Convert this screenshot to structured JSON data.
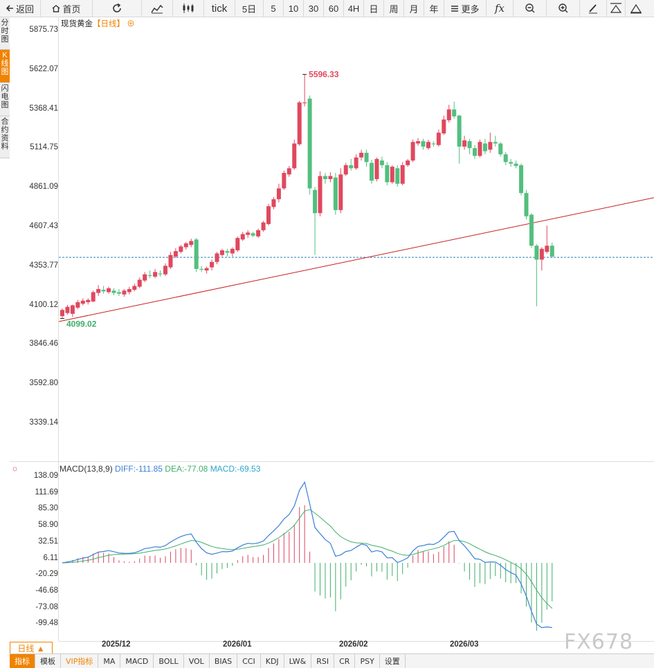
{
  "toolbar": {
    "back": "返回",
    "home": "首页",
    "tick": "tick",
    "periods": [
      "5日",
      "5",
      "10",
      "30",
      "60",
      "4H",
      "日",
      "周",
      "月",
      "年"
    ],
    "more": "更多",
    "fx": "fx"
  },
  "sidebar": [
    "分时图",
    "K线图",
    "闪电图",
    "合约资料"
  ],
  "chart": {
    "name": "现货黄金",
    "period": "【日线】",
    "y_ticks": [
      "5875.73",
      "5622.07",
      "5368.41",
      "5114.75",
      "4861.09",
      "4607.43",
      "4353.77",
      "4100.12",
      "3846.46",
      "3592.80",
      "3339.14"
    ],
    "high_label": "5596.33",
    "low_label": "4099.02",
    "x_ticks": [
      "2025/12",
      "2026/01",
      "2026/02",
      "2026/03"
    ]
  },
  "macd": {
    "title": "MACD(13,8,9)",
    "diff": "DIFF:-111.85",
    "dea": "DEA:-77.08",
    "macd": "MACD:-69.53",
    "y_ticks": [
      "138.09",
      "111.69",
      "85.30",
      "58.90",
      "32.51",
      "6.11",
      "-20.29",
      "-46.68",
      "-73.08",
      "-99.48"
    ],
    "colors": {
      "diff": "#3a7fd5",
      "dea": "#3fae6a",
      "up": "#d9455f",
      "down": "#3fae6a"
    }
  },
  "period_button": "日线 ▲",
  "bottom_tabs": [
    "指标",
    "模板",
    "VIP指标",
    "MA",
    "MACD",
    "BOLL",
    "VOL",
    "BIAS",
    "CCI",
    "KDJ",
    "LW&",
    "RSI",
    "CR",
    "PSY",
    "设置"
  ],
  "watermark": "FX678",
  "chart_data": {
    "type": "candlestick",
    "title": "现货黄金【日线】",
    "ylim": [
      3250,
      5920
    ],
    "candles": [
      [
        4035,
        4075,
        4020,
        4085
      ],
      [
        4055,
        4095,
        4045,
        4108
      ],
      [
        4050,
        4105,
        4030,
        4110
      ],
      [
        4090,
        4125,
        4080,
        4140
      ],
      [
        4115,
        4135,
        4105,
        4150
      ],
      [
        4125,
        4140,
        4110,
        4150
      ],
      [
        4130,
        4190,
        4125,
        4200
      ],
      [
        4185,
        4210,
        4165,
        4235
      ],
      [
        4205,
        4195,
        4180,
        4230
      ],
      [
        4190,
        4215,
        4180,
        4225
      ],
      [
        4200,
        4185,
        4170,
        4215
      ],
      [
        4190,
        4180,
        4165,
        4210
      ],
      [
        4175,
        4200,
        4160,
        4210
      ],
      [
        4190,
        4210,
        4175,
        4225
      ],
      [
        4205,
        4230,
        4195,
        4245
      ],
      [
        4225,
        4270,
        4215,
        4285
      ],
      [
        4265,
        4305,
        4255,
        4320
      ],
      [
        4300,
        4295,
        4280,
        4330
      ],
      [
        4290,
        4320,
        4280,
        4340
      ],
      [
        4310,
        4305,
        4290,
        4330
      ],
      [
        4305,
        4360,
        4295,
        4375
      ],
      [
        4350,
        4430,
        4340,
        4450
      ],
      [
        4420,
        4455,
        4410,
        4475
      ],
      [
        4450,
        4485,
        4440,
        4495
      ],
      [
        4480,
        4505,
        4465,
        4515
      ],
      [
        4495,
        4520,
        4480,
        4535
      ],
      [
        4530,
        4340,
        4320,
        4540
      ],
      [
        4340,
        4335,
        4320,
        4360
      ],
      [
        4330,
        4345,
        4310,
        4355
      ],
      [
        4350,
        4385,
        4330,
        4400
      ],
      [
        4385,
        4440,
        4370,
        4450
      ],
      [
        4430,
        4460,
        4420,
        4470
      ],
      [
        4455,
        4445,
        4420,
        4470
      ],
      [
        4440,
        4470,
        4420,
        4480
      ],
      [
        4460,
        4540,
        4450,
        4550
      ],
      [
        4530,
        4565,
        4520,
        4580
      ],
      [
        4560,
        4575,
        4540,
        4590
      ],
      [
        4570,
        4555,
        4545,
        4580
      ],
      [
        4550,
        4590,
        4540,
        4600
      ],
      [
        4590,
        4640,
        4580,
        4650
      ],
      [
        4630,
        4745,
        4620,
        4760
      ],
      [
        4740,
        4790,
        4725,
        4805
      ],
      [
        4790,
        4860,
        4770,
        4890
      ],
      [
        4860,
        4960,
        4850,
        4975
      ],
      [
        4950,
        4990,
        4935,
        5005
      ],
      [
        4990,
        5150,
        4980,
        5175
      ],
      [
        5145,
        5415,
        5135,
        5425
      ],
      [
        5410,
        5415,
        5390,
        5596
      ],
      [
        5440,
        4860,
        4820,
        5460
      ],
      [
        4850,
        4700,
        4430,
        4870
      ],
      [
        4700,
        4940,
        4680,
        4970
      ],
      [
        4940,
        4920,
        4890,
        4960
      ],
      [
        4920,
        4940,
        4900,
        4965
      ],
      [
        4930,
        4720,
        4690,
        4960
      ],
      [
        4720,
        4950,
        4700,
        4990
      ],
      [
        4950,
        5010,
        4940,
        5025
      ],
      [
        5010,
        4990,
        4975,
        5050
      ],
      [
        4990,
        5060,
        4980,
        5080
      ],
      [
        5060,
        5090,
        5040,
        5110
      ],
      [
        5090,
        5030,
        5000,
        5110
      ],
      [
        5025,
        4910,
        4890,
        5045
      ],
      [
        4920,
        5050,
        4905,
        5060
      ],
      [
        5040,
        5010,
        4990,
        5065
      ],
      [
        5010,
        4900,
        4880,
        5030
      ],
      [
        4900,
        5000,
        4890,
        5010
      ],
      [
        4990,
        4890,
        4870,
        5010
      ],
      [
        4890,
        5010,
        4880,
        5030
      ],
      [
        5010,
        5040,
        5000,
        5050
      ],
      [
        5040,
        5160,
        5030,
        5175
      ],
      [
        5150,
        5165,
        5135,
        5185
      ],
      [
        5165,
        5130,
        5110,
        5180
      ],
      [
        5120,
        5160,
        5110,
        5175
      ],
      [
        5150,
        5145,
        5130,
        5165
      ],
      [
        5140,
        5220,
        5130,
        5240
      ],
      [
        5215,
        5305,
        5205,
        5330
      ],
      [
        5300,
        5370,
        5285,
        5400
      ],
      [
        5370,
        5325,
        5310,
        5420
      ],
      [
        5330,
        5130,
        5020,
        5335
      ],
      [
        5130,
        5170,
        5110,
        5200
      ],
      [
        5165,
        5120,
        5080,
        5180
      ],
      [
        5120,
        5070,
        5050,
        5140
      ],
      [
        5070,
        5160,
        5060,
        5175
      ],
      [
        5150,
        5100,
        5080,
        5180
      ],
      [
        5110,
        5160,
        5090,
        5220
      ],
      [
        5160,
        5150,
        5130,
        5200
      ],
      [
        5150,
        5080,
        5065,
        5160
      ],
      [
        5080,
        5030,
        5010,
        5095
      ],
      [
        5030,
        5020,
        5000,
        5050
      ],
      [
        5020,
        5005,
        4990,
        5040
      ],
      [
        5010,
        4830,
        4815,
        5020
      ],
      [
        4830,
        4680,
        4660,
        4850
      ],
      [
        4690,
        4490,
        4475,
        4700
      ],
      [
        4490,
        4400,
        4099,
        4500
      ],
      [
        4400,
        4470,
        4330,
        4480
      ],
      [
        4450,
        4490,
        4440,
        4620
      ],
      [
        4490,
        4420,
        4410,
        4510
      ]
    ],
    "trendline": [
      [
        4000,
        4800
      ]
    ],
    "reference_price": 4415
  }
}
